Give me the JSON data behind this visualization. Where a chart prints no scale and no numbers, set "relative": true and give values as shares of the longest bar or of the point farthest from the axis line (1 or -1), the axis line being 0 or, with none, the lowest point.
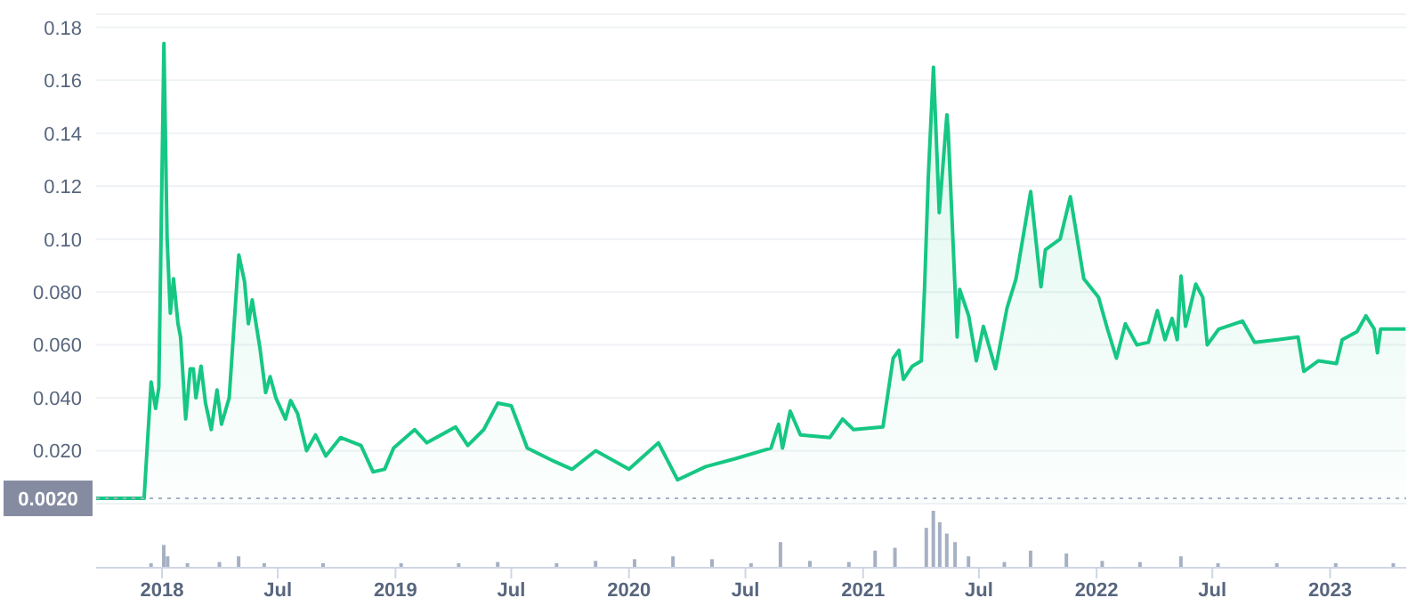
{
  "chart_data": [
    {
      "type": "area",
      "x": [
        "2017-09-20",
        "2017-12-04",
        "2017-12-15",
        "2017-12-22",
        "2017-12-27",
        "2018-01-04",
        "2018-01-09",
        "2018-01-14",
        "2018-01-19",
        "2018-01-26",
        "2018-01-30",
        "2018-02-07",
        "2018-02-14",
        "2018-02-19",
        "2018-02-23",
        "2018-03-03",
        "2018-03-10",
        "2018-03-19",
        "2018-03-28",
        "2018-04-04",
        "2018-04-16",
        "2018-05-01",
        "2018-05-10",
        "2018-05-16",
        "2018-05-22",
        "2018-06-03",
        "2018-06-12",
        "2018-06-19",
        "2018-06-28",
        "2018-07-13",
        "2018-07-21",
        "2018-08-01",
        "2018-08-15",
        "2018-08-29",
        "2018-09-14",
        "2018-10-07",
        "2018-11-08",
        "2018-11-27",
        "2018-12-15",
        "2018-12-29",
        "2019-01-31",
        "2019-02-19",
        "2019-04-05",
        "2019-04-24",
        "2019-05-19",
        "2019-06-10",
        "2019-07-01",
        "2019-07-26",
        "2019-09-06",
        "2019-10-04",
        "2019-11-10",
        "2020-01-01",
        "2020-02-16",
        "2020-03-17",
        "2020-04-30",
        "2020-06-15",
        "2020-08-10",
        "2020-08-22",
        "2020-08-28",
        "2020-09-09",
        "2020-09-25",
        "2020-11-10",
        "2020-11-30",
        "2020-12-17",
        "2021-02-01",
        "2021-02-17",
        "2021-02-26",
        "2021-03-05",
        "2021-03-19",
        "2021-04-02",
        "2021-04-07",
        "2021-04-13",
        "2021-04-21",
        "2021-04-30",
        "2021-05-12",
        "2021-05-14",
        "2021-05-28",
        "2021-06-01",
        "2021-06-15",
        "2021-06-27",
        "2021-07-08",
        "2021-07-27",
        "2021-08-14",
        "2021-08-28",
        "2021-09-11",
        "2021-09-20",
        "2021-10-06",
        "2021-10-13",
        "2021-11-05",
        "2021-11-21",
        "2021-12-12",
        "2022-01-04",
        "2022-01-18",
        "2022-02-01",
        "2022-02-15",
        "2022-03-05",
        "2022-03-23",
        "2022-04-06",
        "2022-04-18",
        "2022-04-29",
        "2022-05-07",
        "2022-05-13",
        "2022-05-20",
        "2022-06-05",
        "2022-06-16",
        "2022-06-23",
        "2022-07-11",
        "2022-08-17",
        "2022-09-05",
        "2022-10-11",
        "2022-11-12",
        "2022-11-21",
        "2022-12-14",
        "2023-01-11",
        "2023-01-20",
        "2023-02-12",
        "2023-02-26",
        "2023-03-11",
        "2023-03-16",
        "2023-03-21",
        "2023-04-13",
        "2023-04-29"
      ],
      "series": [
        {
          "color": "#16c784",
          "values": [
            0.002,
            0.002,
            0.046,
            0.036,
            0.044,
            0.174,
            0.1,
            0.072,
            0.085,
            0.068,
            0.063,
            0.032,
            0.051,
            0.051,
            0.04,
            0.052,
            0.038,
            0.028,
            0.043,
            0.03,
            0.04,
            0.094,
            0.084,
            0.068,
            0.077,
            0.059,
            0.042,
            0.048,
            0.04,
            0.032,
            0.039,
            0.034,
            0.02,
            0.026,
            0.018,
            0.025,
            0.022,
            0.012,
            0.013,
            0.021,
            0.028,
            0.023,
            0.029,
            0.022,
            0.028,
            0.038,
            0.037,
            0.021,
            0.016,
            0.013,
            0.02,
            0.013,
            0.023,
            0.009,
            0.014,
            0.017,
            0.021,
            0.03,
            0.021,
            0.035,
            0.026,
            0.025,
            0.032,
            0.028,
            0.029,
            0.055,
            0.058,
            0.047,
            0.052,
            0.054,
            0.081,
            0.124,
            0.165,
            0.11,
            0.147,
            0.141,
            0.063,
            0.081,
            0.071,
            0.054,
            0.067,
            0.051,
            0.074,
            0.085,
            0.105,
            0.118,
            0.082,
            0.096,
            0.1,
            0.116,
            0.085,
            0.078,
            0.066,
            0.055,
            0.068,
            0.06,
            0.061,
            0.073,
            0.062,
            0.07,
            0.062,
            0.086,
            0.067,
            0.083,
            0.078,
            0.06,
            0.066,
            0.069,
            0.061,
            0.062,
            0.063,
            0.05,
            0.054,
            0.053,
            0.062,
            0.065,
            0.071,
            0.066,
            0.057,
            0.066,
            0.066,
            0.066
          ]
        }
      ],
      "xlim": [
        "2017-09-20",
        "2023-04-30"
      ],
      "ylim": [
        0,
        0.185
      ],
      "yticks": [
        {
          "value": 0.02,
          "label": "0.020"
        },
        {
          "value": 0.04,
          "label": "0.040"
        },
        {
          "value": 0.06,
          "label": "0.060"
        },
        {
          "value": 0.08,
          "label": "0.080"
        },
        {
          "value": 0.1,
          "label": "0.10"
        },
        {
          "value": 0.12,
          "label": "0.12"
        },
        {
          "value": 0.14,
          "label": "0.14"
        },
        {
          "value": 0.16,
          "label": "0.16"
        },
        {
          "value": 0.18,
          "label": "0.18"
        }
      ],
      "grid": "y",
      "tick_labels": "y",
      "legend": false,
      "ref_lines": [
        {
          "axis": "y",
          "value": 0.002,
          "label": "0.0020",
          "color": "#a6b0c3",
          "line_style": "dotted"
        }
      ]
    },
    {
      "type": "bar",
      "relative": true,
      "x": [
        "2017-12-15",
        "2018-01-04",
        "2018-01-10",
        "2018-02-10",
        "2018-04-01",
        "2018-05-01",
        "2018-06-10",
        "2018-09-10",
        "2019-01-10",
        "2019-04-10",
        "2019-06-10",
        "2019-09-10",
        "2019-11-10",
        "2020-01-10",
        "2020-03-10",
        "2020-05-10",
        "2020-07-10",
        "2020-08-25",
        "2020-10-10",
        "2020-12-10",
        "2021-01-20",
        "2021-02-20",
        "2021-04-10",
        "2021-04-21",
        "2021-05-01",
        "2021-05-12",
        "2021-05-25",
        "2021-06-15",
        "2021-08-10",
        "2021-09-20",
        "2021-11-15",
        "2022-01-10",
        "2022-03-10",
        "2022-05-13",
        "2022-07-10",
        "2022-10-10",
        "2023-01-10",
        "2023-04-10"
      ],
      "series": [
        {
          "color": "#a6b0c3",
          "values": [
            0.08,
            0.4,
            0.2,
            0.08,
            0.1,
            0.2,
            0.08,
            0.08,
            0.08,
            0.08,
            0.1,
            0.08,
            0.12,
            0.15,
            0.2,
            0.15,
            0.08,
            0.45,
            0.12,
            0.1,
            0.3,
            0.35,
            0.7,
            1,
            0.8,
            0.6,
            0.45,
            0.2,
            0.1,
            0.3,
            0.25,
            0.12,
            0.1,
            0.2,
            0.08,
            0.08,
            0.08,
            0.08
          ]
        }
      ],
      "xlim": [
        "2017-09-20",
        "2023-04-30"
      ],
      "xticks": [
        {
          "value": "2018-01-01",
          "label": "2018"
        },
        {
          "value": "2018-07-01",
          "label": "Jul"
        },
        {
          "value": "2019-01-01",
          "label": "2019"
        },
        {
          "value": "2019-07-01",
          "label": "Jul"
        },
        {
          "value": "2020-01-01",
          "label": "2020"
        },
        {
          "value": "2020-07-01",
          "label": "Jul"
        },
        {
          "value": "2021-01-01",
          "label": "2021"
        },
        {
          "value": "2021-07-01",
          "label": "Jul"
        },
        {
          "value": "2022-01-01",
          "label": "2022"
        },
        {
          "value": "2022-07-01",
          "label": "Jul"
        },
        {
          "value": "2023-01-01",
          "label": "2023"
        }
      ],
      "tick_labels": "x",
      "legend": false
    }
  ]
}
